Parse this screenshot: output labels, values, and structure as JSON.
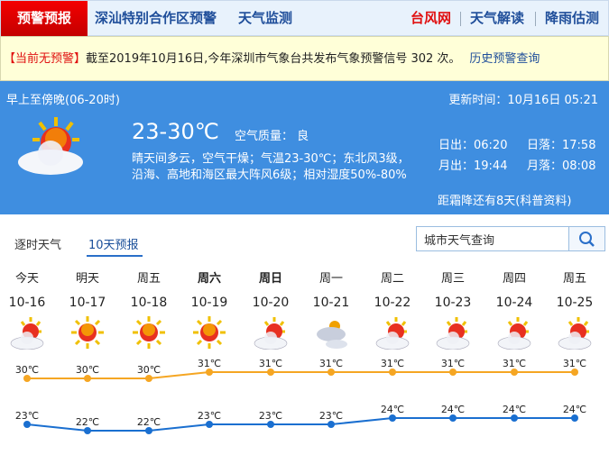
{
  "nav": {
    "active": "预警预报",
    "items": [
      "深汕特别合作区预警",
      "天气监测"
    ],
    "right": [
      "台风网",
      "天气解读",
      "降雨估测"
    ],
    "right_colors": [
      "#e01010",
      "#1f4e9a",
      "#1f4e9a"
    ]
  },
  "warning": {
    "badge": "【当前无预警】",
    "text": "截至2019年10月16日,今年深圳市气象台共发布气象预警信号 302 次。",
    "link": "历史预警查询"
  },
  "today": {
    "period": "早上至傍晚(06-20时)",
    "updated": "更新时间：10月16日 05:21",
    "temp": "23-30℃",
    "aqi": "空气质量： 良",
    "desc1": "晴天间多云，空气干燥；气温23-30℃；东北风3级，",
    "desc2": "沿海、高地和海区最大阵风6级；相对湿度50%-80%",
    "sunrise": "日出：06:20",
    "sunset": "日落：17:58",
    "moonrise": "月出：19:44",
    "moonset": "月落：08:08",
    "note": "距霜降还有8天(科普资料)",
    "icon": "sun-cloud-icon"
  },
  "tabs": {
    "hourly": "逐时天气",
    "tenday": "10天预报"
  },
  "search": {
    "placeholder": "城市天气查询",
    "value": "城市天气查询"
  },
  "forecast": {
    "days": [
      {
        "day": "今天",
        "date": "10-16",
        "icon": "sun-cloud",
        "bold": false
      },
      {
        "day": "明天",
        "date": "10-17",
        "icon": "sun",
        "bold": false
      },
      {
        "day": "周五",
        "date": "10-18",
        "icon": "sun",
        "bold": false
      },
      {
        "day": "周六",
        "date": "10-19",
        "icon": "sun",
        "bold": true
      },
      {
        "day": "周日",
        "date": "10-20",
        "icon": "sun-cloud",
        "bold": true
      },
      {
        "day": "周一",
        "date": "10-21",
        "icon": "cloudy",
        "bold": false
      },
      {
        "day": "周二",
        "date": "10-22",
        "icon": "sun-cloud",
        "bold": false
      },
      {
        "day": "周三",
        "date": "10-23",
        "icon": "sun-cloud",
        "bold": false
      },
      {
        "day": "周四",
        "date": "10-24",
        "icon": "sun-cloud",
        "bold": false
      },
      {
        "day": "周五",
        "date": "10-25",
        "icon": "sun-cloud",
        "bold": false
      }
    ]
  },
  "chart_data": {
    "type": "line",
    "categories": [
      "10-16",
      "10-17",
      "10-18",
      "10-19",
      "10-20",
      "10-21",
      "10-22",
      "10-23",
      "10-24",
      "10-25"
    ],
    "series": [
      {
        "values": [
          30,
          30,
          30,
          31,
          31,
          31,
          31,
          31,
          31,
          31
        ],
        "color": "#f5a623"
      },
      {
        "values": [
          23,
          22,
          22,
          23,
          23,
          23,
          24,
          24,
          24,
          24
        ],
        "color": "#1a6fd0"
      }
    ],
    "unit": "℃"
  }
}
